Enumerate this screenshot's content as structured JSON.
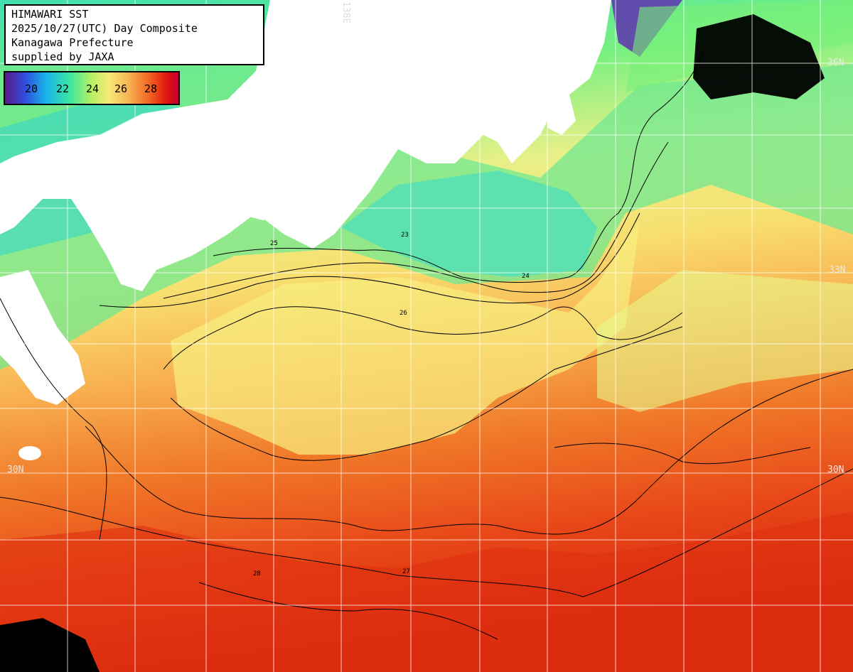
{
  "header": {
    "line1": "HIMAWARI SST",
    "line2": "2025/10/27(UTC) Day Composite",
    "line3": "Kanagawa Prefecture",
    "line4": "supplied by JAXA"
  },
  "legend": {
    "labels": [
      "20",
      "22",
      "24",
      "26",
      "28"
    ]
  },
  "grid": {
    "lat_labels": [
      "36N",
      "33N",
      "30N",
      "30N"
    ],
    "lon_label": "138E"
  },
  "contour_labels": [
    "23",
    "24",
    "25",
    "26",
    "27",
    "28"
  ],
  "colors": {
    "land": "#ffffff",
    "cloud": "#000000",
    "grid": "#ffffff",
    "contour": "#000000"
  }
}
